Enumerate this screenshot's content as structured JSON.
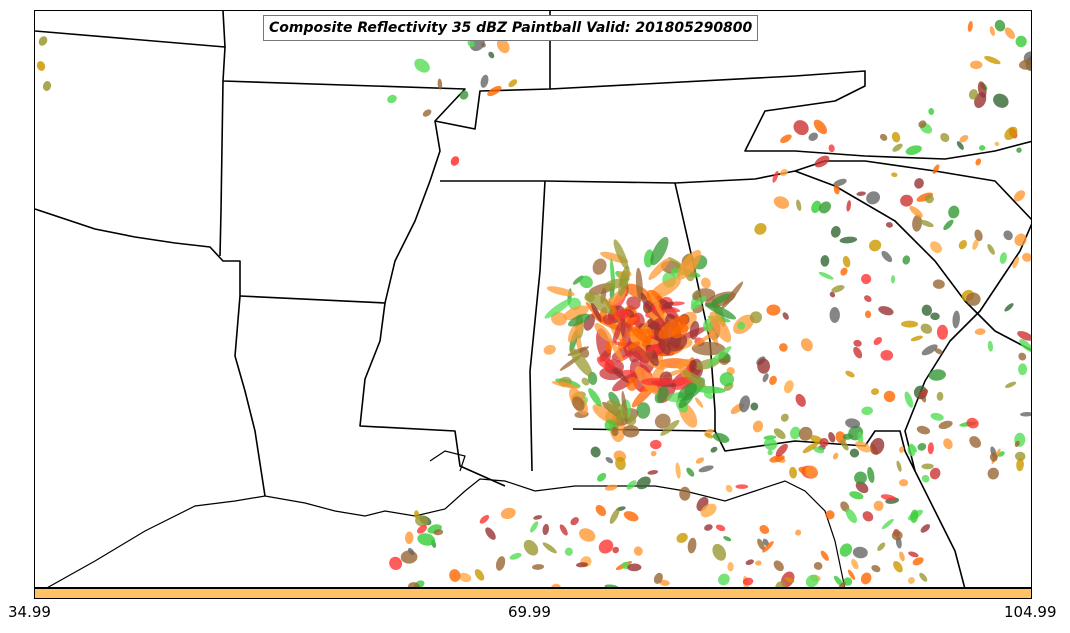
{
  "map": {
    "title": "Composite Reflectivity 35 dBZ Paintball Valid: 201805290800",
    "colorbar_color": "#ffc266",
    "colorbar_ticks": [
      "34.99",
      "69.99",
      "104.99"
    ],
    "paintball_colors": [
      "#ff3333",
      "#ff6600",
      "#cc3333",
      "#ff9933",
      "#33cc33",
      "#339933",
      "#999933",
      "#996633",
      "#336633",
      "#993333",
      "#ffaa44",
      "#666666",
      "#cc9900",
      "#55dd55"
    ]
  }
}
